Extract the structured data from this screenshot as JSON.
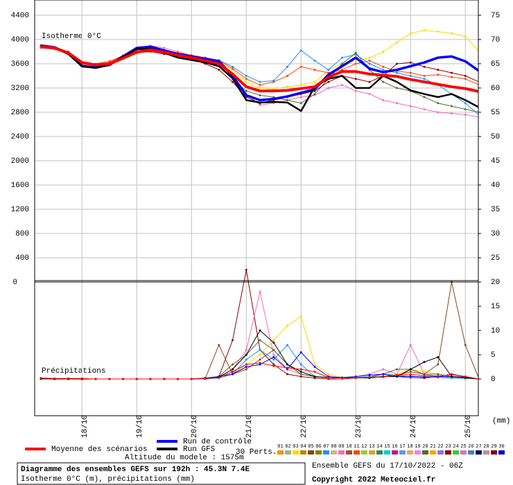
{
  "chart_data": {
    "type": "line",
    "categories": [
      null,
      null,
      null,
      "18/10",
      null,
      null,
      null,
      "19/10",
      null,
      null,
      null,
      "20/10",
      null,
      null,
      null,
      "21/10",
      null,
      null,
      null,
      "22/10",
      null,
      null,
      null,
      "23/10",
      null,
      null,
      null,
      "24/10",
      null,
      null,
      null,
      "25/10",
      null
    ],
    "panels": [
      {
        "title": "Isotherme 0°C",
        "ylim": [
          0,
          4651
        ],
        "yticks": [
          0,
          400,
          800,
          1200,
          1600,
          2000,
          2400,
          2800,
          3200,
          3600,
          4000,
          4400
        ],
        "y2lim": [
          20,
          78.14
        ],
        "y2ticks": [
          25,
          30,
          35,
          40,
          45,
          50,
          55,
          60,
          65,
          70,
          75
        ],
        "grid": true,
        "series": [
          {
            "color": "#ffd700",
            "values": [
              3870,
              3850,
              3790,
              3600,
              3560,
              3600,
              3700,
              3800,
              3840,
              3800,
              3760,
              3720,
              3680,
              3620,
              3500,
              3300,
              3200,
              3180,
              3220,
              3250,
              3300,
              3500,
              3600,
              3650,
              3700,
              3800,
              3950,
              4100,
              4150,
              4130,
              4100,
              4050,
              3800
            ]
          },
          {
            "color": "#1e90ff",
            "values": [
              3890,
              3860,
              3780,
              3580,
              3550,
              3610,
              3720,
              3830,
              3860,
              3810,
              3770,
              3730,
              3700,
              3660,
              3550,
              3400,
              3300,
              3320,
              3550,
              3820,
              3650,
              3500,
              3700,
              3750,
              3600,
              3500,
              3450,
              3400,
              3350,
              3250,
              3100,
              2950,
              2750
            ]
          },
          {
            "color": "#ff69b4",
            "values": [
              3860,
              3840,
              3760,
              3590,
              3570,
              3620,
              3740,
              3850,
              3900,
              3860,
              3800,
              3740,
              3700,
              3620,
              3380,
              3100,
              2920,
              2950,
              3000,
              3050,
              3080,
              3200,
              3250,
              3150,
              3100,
              3000,
              2950,
              2900,
              2850,
              2800,
              2780,
              2760,
              2720
            ]
          },
          {
            "color": "#556b2f",
            "values": [
              3880,
              3850,
              3770,
              3600,
              3580,
              3610,
              3700,
              3790,
              3820,
              3780,
              3740,
              3700,
              3640,
              3560,
              3350,
              3150,
              3080,
              3050,
              3000,
              2950,
              3100,
              3350,
              3600,
              3780,
              3500,
              3300,
              3200,
              3150,
              3050,
              2950,
              2900,
              2850,
              2800
            ]
          },
          {
            "color": "#8b0000",
            "values": [
              3900,
              3870,
              3790,
              3610,
              3560,
              3590,
              3690,
              3780,
              3800,
              3760,
              3720,
              3680,
              3600,
              3500,
              3300,
              3050,
              2950,
              3000,
              3050,
              3100,
              3150,
              3300,
              3400,
              3350,
              3300,
              3400,
              3600,
              3620,
              3550,
              3500,
              3450,
              3400,
              3300
            ]
          },
          {
            "color": "#ff4500",
            "values": [
              3870,
              3860,
              3800,
              3620,
              3600,
              3640,
              3730,
              3810,
              3850,
              3820,
              3780,
              3740,
              3700,
              3650,
              3520,
              3350,
              3250,
              3300,
              3400,
              3550,
              3500,
              3450,
              3500,
              3600,
              3650,
              3550,
              3480,
              3450,
              3400,
              3420,
              3380,
              3350,
              3250
            ]
          },
          {
            "name": "Run de contrôle",
            "color": "#0000ff",
            "values": [
              3900,
              3870,
              3770,
              3560,
              3540,
              3580,
              3720,
              3860,
              3880,
              3820,
              3760,
              3720,
              3680,
              3640,
              3400,
              3080,
              3000,
              3020,
              3060,
              3120,
              3180,
              3420,
              3560,
              3700,
              3520,
              3460,
              3500,
              3560,
              3620,
              3700,
              3720,
              3640,
              3480
            ]
          },
          {
            "name": "Run GFS",
            "color": "#000000",
            "values": [
              3880,
              3860,
              3760,
              3560,
              3530,
              3580,
              3720,
              3840,
              3850,
              3780,
              3700,
              3660,
              3620,
              3560,
              3360,
              3000,
              2960,
              2970,
              2960,
              2820,
              3220,
              3350,
              3400,
              3200,
              3200,
              3400,
              3300,
              3160,
              3100,
              3050,
              3100,
              3000,
              2880
            ]
          },
          {
            "name": "Moyenne des scénarios",
            "color": "#ff0000",
            "values": [
              3880,
              3860,
              3780,
              3620,
              3580,
              3600,
              3690,
              3790,
              3830,
              3790,
              3740,
              3700,
              3650,
              3600,
              3430,
              3220,
              3150,
              3150,
              3160,
              3190,
              3220,
              3380,
              3470,
              3470,
              3430,
              3410,
              3390,
              3340,
              3300,
              3260,
              3220,
              3190,
              3140
            ]
          }
        ]
      },
      {
        "title": "Précipitations",
        "y2lim": [
          -7.57,
          20
        ],
        "y2ticks": [
          0,
          5,
          10,
          15,
          20
        ],
        "y2_unit": "(mm)",
        "series": [
          {
            "axis": "y2",
            "color": "#8b0000",
            "values": [
              0,
              0,
              0,
              0,
              0,
              0,
              0,
              0,
              0,
              0,
              0,
              0,
              0.1,
              0.5,
              8,
              22.5,
              6,
              3,
              1,
              0.5,
              0.2,
              0,
              0,
              0.2,
              0.3,
              0.5,
              0.5,
              0.3,
              0.2,
              0.5,
              1,
              0.5,
              0
            ]
          },
          {
            "axis": "y2",
            "color": "#ff69b4",
            "values": [
              0,
              0,
              0,
              0,
              0,
              0,
              0,
              0,
              0,
              0,
              0,
              0,
              0,
              0.3,
              2,
              6,
              18,
              5,
              2,
              1,
              0.5,
              0.2,
              0,
              0.5,
              1,
              2,
              1,
              7,
              1,
              0.5,
              0.3,
              0.2,
              0
            ]
          },
          {
            "axis": "y2",
            "color": "#ffd700",
            "values": [
              0,
              0,
              0,
              0,
              0,
              0,
              0,
              0,
              0,
              0,
              0,
              0,
              0,
              0.2,
              1,
              3,
              5,
              8,
              11,
              12.9,
              3,
              1,
              0.3,
              0.2,
              0.2,
              0.5,
              1,
              2,
              1.5,
              1,
              0.5,
              0.3,
              0
            ]
          },
          {
            "axis": "y2",
            "color": "#8b4513",
            "values": [
              0,
              0,
              0,
              0,
              0,
              0,
              0,
              0,
              0,
              0,
              0,
              0,
              0.1,
              7,
              1,
              2,
              4,
              6,
              3,
              1,
              0.5,
              0.3,
              0.2,
              0.2,
              0.3,
              0.5,
              0.8,
              1.5,
              1,
              3,
              20,
              7,
              0
            ]
          },
          {
            "axis": "y2",
            "color": "#1e90ff",
            "values": [
              0,
              0,
              0,
              0,
              0,
              0,
              0,
              0,
              0,
              0,
              0,
              0,
              0,
              0.2,
              1,
              4,
              6,
              4,
              7,
              3,
              0.5,
              0.3,
              0.2,
              0.3,
              0.5,
              1,
              0.8,
              0.5,
              0.5,
              0.3,
              0.2,
              0.1,
              0
            ]
          },
          {
            "axis": "y2",
            "color": "#556b2f",
            "values": [
              0,
              0,
              0,
              0,
              0,
              0,
              0,
              0,
              0,
              0,
              0,
              0,
              0.1,
              0.5,
              3,
              5,
              8,
              6,
              3,
              1,
              0.5,
              0.3,
              0.2,
              0.2,
              0.3,
              1,
              2,
              2,
              1,
              1,
              0.5,
              0.2,
              0
            ]
          },
          {
            "axis": "y2",
            "color": "#0000ff",
            "values": [
              0.1,
              0,
              0,
              0,
              0,
              0,
              0,
              0,
              0,
              0,
              0,
              0,
              0.2,
              0.5,
              1,
              2.5,
              3,
              4.5,
              2,
              5.5,
              2.5,
              0.5,
              0.3,
              0.5,
              0.8,
              1,
              0.5,
              0.6,
              0.4,
              0.5,
              0.5,
              0.4,
              0
            ]
          },
          {
            "axis": "y2",
            "color": "#000000",
            "values": [
              0.1,
              0,
              0,
              0,
              0,
              0,
              0,
              0,
              0,
              0,
              0,
              0,
              0.1,
              0.4,
              2,
              5,
              10,
              7.5,
              3,
              1.5,
              0.5,
              0.3,
              0.2,
              0.3,
              0.2,
              0.5,
              0.5,
              2,
              3.5,
              4.5,
              0.5,
              0.3,
              0
            ]
          },
          {
            "axis": "y2",
            "color": "#ff0000",
            "values": [
              0.2,
              0.1,
              0.1,
              0.1,
              0,
              0,
              0,
              0,
              0,
              0,
              0,
              0,
              0.1,
              0.3,
              1.5,
              3,
              3.3,
              2.7,
              2.3,
              2,
              1.5,
              0.3,
              0.2,
              0.3,
              0.3,
              0.4,
              0.8,
              1,
              0.7,
              0.6,
              0.9,
              0.5,
              0
            ]
          }
        ]
      }
    ],
    "members_label": "30 Perts.",
    "members": [
      {
        "name": "01",
        "color": "#ff8c00"
      },
      {
        "name": "02",
        "color": "#8fbc8f"
      },
      {
        "name": "03",
        "color": "#ffd700"
      },
      {
        "name": "04",
        "color": "#b8860b"
      },
      {
        "name": "05",
        "color": "#8b4513"
      },
      {
        "name": "06",
        "color": "#808000"
      },
      {
        "name": "07",
        "color": "#1e90ff"
      },
      {
        "name": "08",
        "color": "#d2b48c"
      },
      {
        "name": "09",
        "color": "#ff69b4"
      },
      {
        "name": "10",
        "color": "#a0522d"
      },
      {
        "name": "11",
        "color": "#ff4500"
      },
      {
        "name": "12",
        "color": "#9acd32"
      },
      {
        "name": "13",
        "color": "#daa520"
      },
      {
        "name": "14",
        "color": "#2e8b57"
      },
      {
        "name": "15",
        "color": "#00ced1"
      },
      {
        "name": "16",
        "color": "#c71585"
      },
      {
        "name": "17",
        "color": "#6495ed"
      },
      {
        "name": "18",
        "color": "#f4a460"
      },
      {
        "name": "19",
        "color": "#ee82ee"
      },
      {
        "name": "20",
        "color": "#556b2f"
      },
      {
        "name": "21",
        "color": "#ffa500"
      },
      {
        "name": "22",
        "color": "#9370db"
      },
      {
        "name": "23",
        "color": "#8b0000"
      },
      {
        "name": "24",
        "color": "#32cd32"
      },
      {
        "name": "25",
        "color": "#da70d6"
      },
      {
        "name": "26",
        "color": "#4682b4"
      },
      {
        "name": "27",
        "color": "#000080"
      },
      {
        "name": "28",
        "color": "#bc8f8f"
      },
      {
        "name": "29",
        "color": "#800000"
      },
      {
        "name": "30",
        "color": "#0000cd"
      }
    ],
    "altitude_note": "Altitude du modele : 1575m",
    "footer_title": "Diagramme des ensembles GEFS sur 192h : 45.3N 7.4E",
    "footer_subtitle": "Isotherme 0°C (m), précipitations (mm)",
    "run_info": "Ensemble GEFS du 17/10/2022 - 06Z",
    "copyright": "Copyright 2022 Meteociel.fr"
  }
}
